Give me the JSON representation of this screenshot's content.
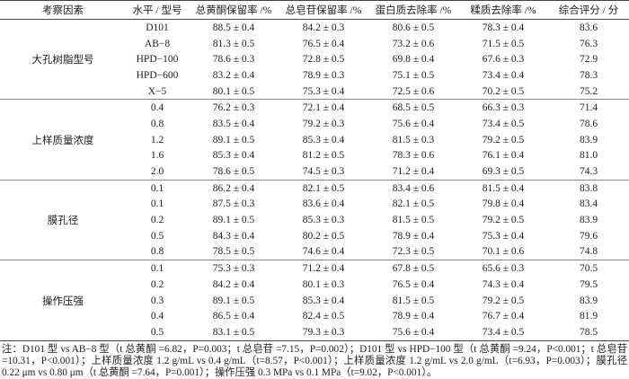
{
  "table": {
    "header": [
      "考察因素",
      "水平 / 型号",
      "总黄酮保留率 /%",
      "总皂苷保留率 /%",
      "蛋白质去除率 /%",
      "糅质去除率 /%",
      "综合评分 / 分"
    ],
    "groups": [
      {
        "factor": "大孔树脂型号",
        "rows": [
          [
            "D101",
            "88.5 ± 0.4",
            "84.2 ± 0.3",
            "80.6 ± 0.5",
            "78.3 ± 0.4",
            "83.6"
          ],
          [
            "AB−8",
            "81.3 ± 0.5",
            "76.5 ± 0.4",
            "73.2 ± 0.6",
            "71.5 ± 0.5",
            "76.3"
          ],
          [
            "HPD−100",
            "78.6 ± 0.3",
            "72.8 ± 0.5",
            "69.8 ± 0.4",
            "67.6 ± 0.3",
            "72.9"
          ],
          [
            "HPD−600",
            "83.2 ± 0.4",
            "78.9 ± 0.3",
            "75.1 ± 0.5",
            "73.4 ± 0.4",
            "78.3"
          ],
          [
            "X−5",
            "80.1 ± 0.5",
            "75.3 ± 0.4",
            "72.5 ± 0.6",
            "70.2 ± 0.5",
            "75.2"
          ]
        ]
      },
      {
        "factor": "上样质量浓度",
        "rows": [
          [
            "0.4",
            "76.2 ± 0.3",
            "72.1 ± 0.4",
            "68.5 ± 0.5",
            "66.3 ± 0.3",
            "71.4"
          ],
          [
            "0.8",
            "83.5 ± 0.4",
            "79.2 ± 0.3",
            "75.6 ± 0.4",
            "73.4 ± 0.5",
            "78.6"
          ],
          [
            "1.2",
            "89.1 ± 0.5",
            "85.3 ± 0.4",
            "81.5 ± 0.3",
            "79.2 ± 0.5",
            "83.9"
          ],
          [
            "1.6",
            "85.3 ± 0.4",
            "81.2 ± 0.5",
            "78.3 ± 0.6",
            "76.1 ± 0.4",
            "81.0"
          ],
          [
            "2.0",
            "78.6 ± 0.5",
            "74.5 ± 0.3",
            "71.2 ± 0.4",
            "69.3 ± 0.5",
            "74.3"
          ]
        ]
      },
      {
        "factor": "膜孔径",
        "rows": [
          [
            "0.1",
            "86.2 ± 0.4",
            "82.1 ± 0.5",
            "83.4 ± 0.6",
            "81.5 ± 0.4",
            "83.8"
          ],
          [
            "0.1",
            "87.5 ± 0.3",
            "83.6 ± 0.4",
            "82.1 ± 0.5",
            "79.8 ± 0.4",
            "83.4"
          ],
          [
            "0.2",
            "89.1 ± 0.5",
            "85.3 ± 0.3",
            "81.5 ± 0.5",
            "79.2 ± 0.5",
            "83.9"
          ],
          [
            "0.5",
            "84.3 ± 0.4",
            "80.2 ± 0.5",
            "78.9 ± 0.4",
            "75.3 ± 0.4",
            "79.6"
          ],
          [
            "0.8",
            "78.5 ± 0.5",
            "74.6 ± 0.4",
            "72.3 ± 0.5",
            "70.1 ± 0.6",
            "74.8"
          ]
        ]
      },
      {
        "factor": "操作压强",
        "rows": [
          [
            "0.1",
            "75.3 ± 0.3",
            "71.2 ± 0.4",
            "67.8 ± 0.5",
            "65.6 ± 0.3",
            "70.5"
          ],
          [
            "0.2",
            "84.2 ± 0.4",
            "80.1 ± 0.3",
            "76.5 ± 0.4",
            "74.3 ± 0.4",
            "79.5"
          ],
          [
            "0.3",
            "89.1 ± 0.5",
            "85.3 ± 0.4",
            "81.5 ± 0.5",
            "79.2 ± 0.5",
            "83.9"
          ],
          [
            "0.4",
            "86.5 ± 0.4",
            "82.4 ± 0.5",
            "78.9 ± 0.4",
            "76.7 ± 0.4",
            "81.9"
          ],
          [
            "0.5",
            "83.1 ± 0.5",
            "79.3 ± 0.3",
            "75.6 ± 0.4",
            "73.4 ± 0.5",
            "78.5"
          ]
        ]
      }
    ]
  },
  "note": "注：D101 型 vs AB−8 型（t 总黄酮 =6.82，P=0.003；t 总皂苷 =7.15，P=0.002）；D101 型 vs HPD−100 型（t 总黄酮 =9.24，P<0.001；t 总皂苷 =10.31，P<0.001）；上样质量浓度 1.2 g/mL vs 0.4 g/mL（t=8.57，P<0.001）；上样质量浓度 1.2 g/mL vs 2.0 g/mL（t=6.93，P=0.003）；膜孔径 0.22 μm vs 0.80 μm（t 总黄酮 =7.64，P=0.001）；操作压强 0.3 MPa vs 0.1 MPa（t=9.02，P<0.001）。"
}
